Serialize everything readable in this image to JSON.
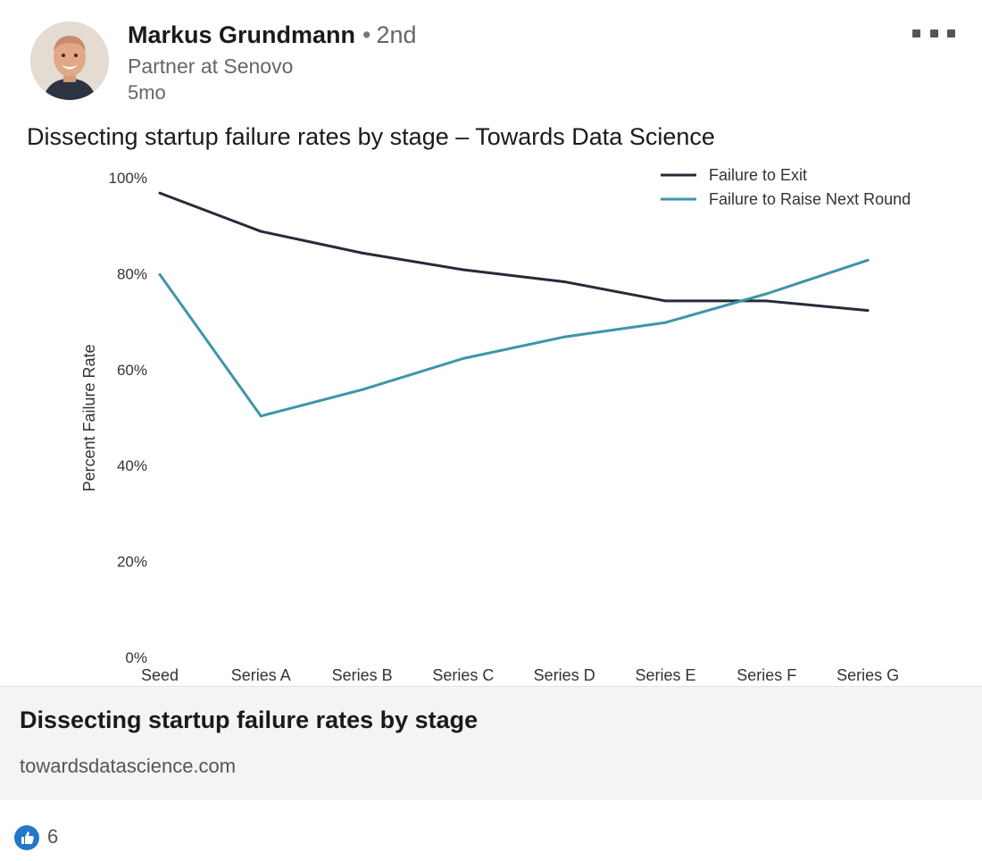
{
  "author": {
    "name": "Markus Grundmann",
    "separator": "•",
    "degree": "2nd",
    "headline": "Partner at Senovo",
    "age": "5mo"
  },
  "post": {
    "text": "Dissecting startup failure rates by stage – Towards Data Science"
  },
  "chart_data": {
    "type": "line",
    "title": "",
    "xlabel": "",
    "ylabel": "Percent Failure Rate",
    "categories": [
      "Seed",
      "Series A",
      "Series B",
      "Series C",
      "Series D",
      "Series E",
      "Series F",
      "Series G"
    ],
    "y_ticks": [
      "0%",
      "20%",
      "40%",
      "60%",
      "80%",
      "100%"
    ],
    "ylim": [
      0,
      100
    ],
    "grid": false,
    "legend_position": "top-right",
    "series": [
      {
        "name": "Failure to Exit",
        "color": "#262b38",
        "values": [
          97,
          89,
          84.5,
          81,
          78.5,
          74.5,
          74.5,
          72.5
        ]
      },
      {
        "name": "Failure to Raise Next Round",
        "color": "#3e95a8",
        "values": [
          80,
          50.5,
          56,
          62.5,
          67,
          70,
          76,
          83
        ]
      }
    ]
  },
  "link_card": {
    "title": "Dissecting startup failure rates by stage",
    "domain": "towardsdatascience.com"
  },
  "social": {
    "likes": "6",
    "like_icon": "thumbs-up-icon",
    "like_color": "#2477c6"
  }
}
